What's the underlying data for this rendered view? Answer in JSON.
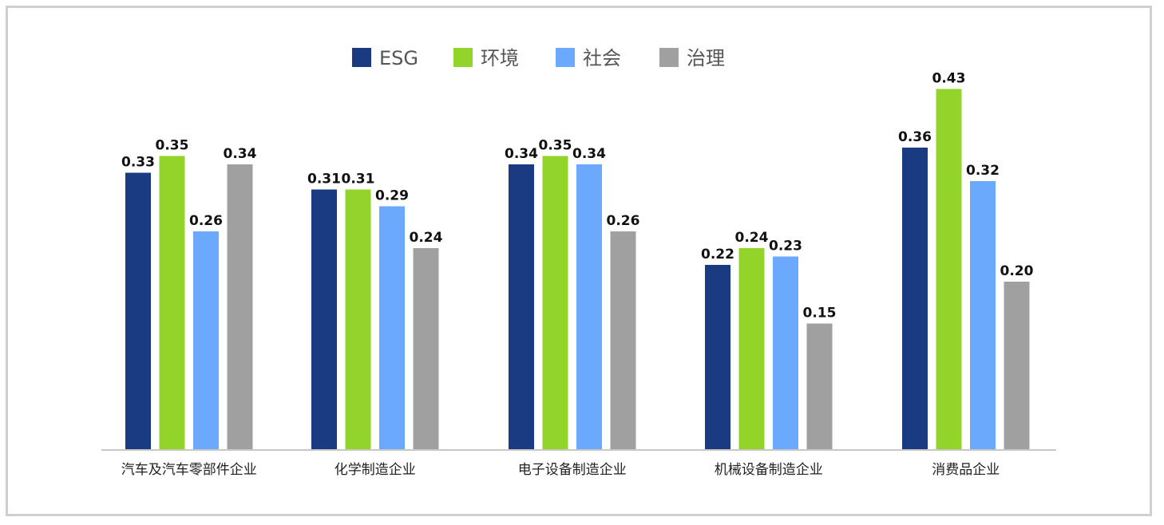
{
  "chart_data": {
    "type": "bar",
    "categories": [
      "汽车及汽车零部件企业",
      "化学制造企业",
      "电子设备制造企业",
      "机械设备制造企业",
      "消费品企业"
    ],
    "series": [
      {
        "name": "ESG",
        "color": "#1a3a82",
        "values": [
          0.33,
          0.31,
          0.34,
          0.22,
          0.36
        ]
      },
      {
        "name": "环境",
        "color": "#93d42a",
        "values": [
          0.35,
          0.31,
          0.35,
          0.24,
          0.43
        ]
      },
      {
        "name": "社会",
        "color": "#6aa9fb",
        "values": [
          0.26,
          0.29,
          0.34,
          0.23,
          0.32
        ]
      },
      {
        "name": "治理",
        "color": "#a0a0a0",
        "values": [
          0.34,
          0.24,
          0.26,
          0.15,
          0.2
        ]
      }
    ],
    "title": "",
    "xlabel": "",
    "ylabel": "",
    "ylim": [
      0,
      0.5
    ],
    "grid": false,
    "legend": "top-center",
    "axis_color": "#c8c8c8"
  }
}
